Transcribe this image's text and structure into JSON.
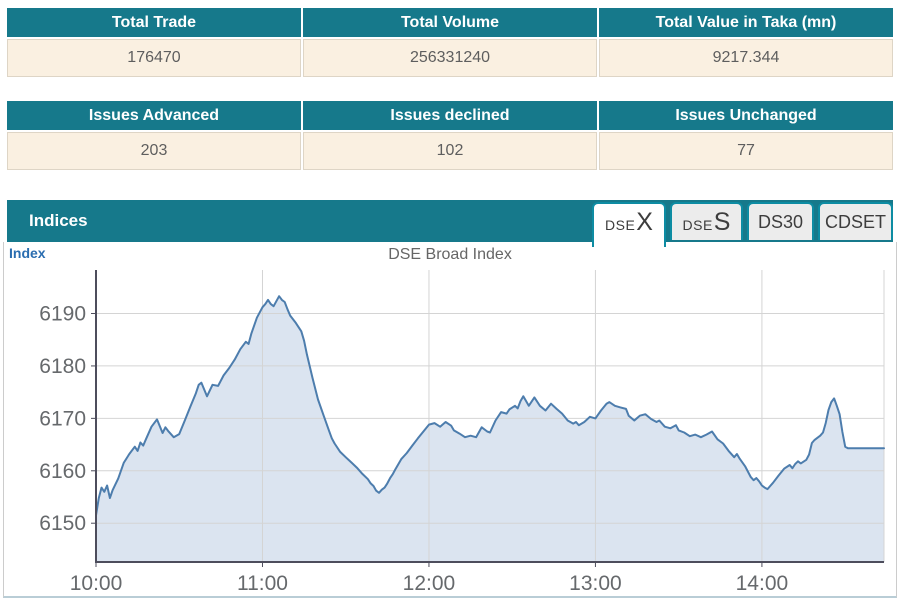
{
  "summary_table": {
    "headers": [
      "Total Trade",
      "Total Volume",
      "Total Value in Taka (mn)"
    ],
    "values": [
      "176470",
      "256331240",
      "9217.344"
    ]
  },
  "issues_table": {
    "headers": [
      "Issues Advanced",
      "Issues declined",
      "Issues Unchanged"
    ],
    "values": [
      "203",
      "102",
      "77"
    ]
  },
  "indices_panel": {
    "title": "Indices",
    "tabs": [
      {
        "small": "DSE",
        "big": "X",
        "active": true
      },
      {
        "small": "DSE",
        "big": "S",
        "active": false
      },
      {
        "text": "DS30",
        "active": false
      },
      {
        "text": "CDSET",
        "active": false
      }
    ],
    "index_label": "Index",
    "chart_title": "DSE Broad Index"
  },
  "colors": {
    "teal_header": "#16798b",
    "tab_border": "#0d8ca3",
    "tab_inactive_bg": "#ececec",
    "cream_row": "#faf0e1",
    "value_text": "#5e5e5e",
    "index_label_blue": "#2a6db0",
    "chart_title_gray": "#666666",
    "line": "#4d7dad",
    "area_fill": "#dbe4f0",
    "grid": "#d4d4d4",
    "axis": "#4d4d5c",
    "tick_text": "#66696c"
  },
  "chart_data": {
    "type": "area",
    "title": "DSE Broad Index",
    "xlabel": "",
    "ylabel": "Index",
    "legend": "none",
    "grid": true,
    "x_axis": {
      "unit": "time of day",
      "ticks": [
        "10:00",
        "11:00",
        "12:00",
        "13:00",
        "14:00"
      ],
      "tick_minutes": [
        0,
        60,
        120,
        180,
        240
      ],
      "total_minutes": 284
    },
    "y_axis": {
      "ticks": [
        6150,
        6160,
        6170,
        6180,
        6190
      ],
      "render_min": 6142.6,
      "render_max": 6198.3
    },
    "series": [
      {
        "name": "DSEX (DSE Broad Index)",
        "points_format": "[minutes_after_10:00, index_value]",
        "points": [
          [
            0,
            6151.5
          ],
          [
            1,
            6154.8
          ],
          [
            2,
            6156.8
          ],
          [
            3,
            6156.0
          ],
          [
            4,
            6157.2
          ],
          [
            5,
            6154.8
          ],
          [
            6,
            6156.3
          ],
          [
            8,
            6158.5
          ],
          [
            10,
            6161.5
          ],
          [
            12,
            6163.2
          ],
          [
            14,
            6164.6
          ],
          [
            15,
            6163.8
          ],
          [
            16,
            6165.4
          ],
          [
            17,
            6164.8
          ],
          [
            18,
            6166.0
          ],
          [
            20,
            6168.4
          ],
          [
            22,
            6169.8
          ],
          [
            24,
            6167.2
          ],
          [
            25,
            6168.3
          ],
          [
            26,
            6167.6
          ],
          [
            28,
            6166.4
          ],
          [
            30,
            6167.0
          ],
          [
            32,
            6169.6
          ],
          [
            34,
            6172.2
          ],
          [
            36,
            6174.8
          ],
          [
            37,
            6176.4
          ],
          [
            38,
            6176.8
          ],
          [
            40,
            6174.2
          ],
          [
            42,
            6176.4
          ],
          [
            44,
            6176.2
          ],
          [
            46,
            6178.2
          ],
          [
            48,
            6179.6
          ],
          [
            50,
            6181.2
          ],
          [
            52,
            6183.2
          ],
          [
            54,
            6184.6
          ],
          [
            55,
            6184.2
          ],
          [
            56,
            6186.2
          ],
          [
            58,
            6189.2
          ],
          [
            60,
            6191.2
          ],
          [
            61,
            6191.8
          ],
          [
            62,
            6192.6
          ],
          [
            63,
            6191.8
          ],
          [
            64,
            6191.4
          ],
          [
            66,
            6193.3
          ],
          [
            67,
            6192.6
          ],
          [
            68,
            6192.2
          ],
          [
            69,
            6190.8
          ],
          [
            70,
            6189.6
          ],
          [
            72,
            6188.2
          ],
          [
            74,
            6186.6
          ],
          [
            75,
            6184.8
          ],
          [
            76,
            6182.2
          ],
          [
            78,
            6177.8
          ],
          [
            80,
            6173.6
          ],
          [
            82,
            6170.6
          ],
          [
            84,
            6167.6
          ],
          [
            85,
            6166.2
          ],
          [
            86,
            6165.2
          ],
          [
            88,
            6163.6
          ],
          [
            90,
            6162.6
          ],
          [
            92,
            6161.6
          ],
          [
            94,
            6160.6
          ],
          [
            96,
            6159.4
          ],
          [
            98,
            6158.4
          ],
          [
            99,
            6157.6
          ],
          [
            100,
            6157.1
          ],
          [
            101,
            6156.2
          ],
          [
            102,
            6155.8
          ],
          [
            103,
            6156.4
          ],
          [
            104,
            6156.8
          ],
          [
            105,
            6157.6
          ],
          [
            106,
            6158.6
          ],
          [
            107,
            6159.4
          ],
          [
            108,
            6160.4
          ],
          [
            110,
            6162.2
          ],
          [
            112,
            6163.4
          ],
          [
            114,
            6164.8
          ],
          [
            116,
            6166.2
          ],
          [
            118,
            6167.5
          ],
          [
            120,
            6168.8
          ],
          [
            122,
            6169.1
          ],
          [
            124,
            6168.4
          ],
          [
            126,
            6169.3
          ],
          [
            128,
            6168.6
          ],
          [
            129,
            6167.7
          ],
          [
            131,
            6167.1
          ],
          [
            133,
            6166.4
          ],
          [
            135,
            6166.7
          ],
          [
            137,
            6166.4
          ],
          [
            139,
            6168.3
          ],
          [
            141,
            6167.5
          ],
          [
            142,
            6167.3
          ],
          [
            144,
            6169.6
          ],
          [
            146,
            6171.2
          ],
          [
            148,
            6170.9
          ],
          [
            149,
            6171.7
          ],
          [
            151,
            6172.4
          ],
          [
            152,
            6171.9
          ],
          [
            153,
            6173.3
          ],
          [
            154,
            6174.2
          ],
          [
            156,
            6172.4
          ],
          [
            158,
            6174.0
          ],
          [
            160,
            6172.4
          ],
          [
            162,
            6171.5
          ],
          [
            164,
            6172.8
          ],
          [
            166,
            6171.8
          ],
          [
            168,
            6170.9
          ],
          [
            170,
            6169.6
          ],
          [
            172,
            6169.0
          ],
          [
            173,
            6169.3
          ],
          [
            174,
            6168.7
          ],
          [
            176,
            6169.3
          ],
          [
            178,
            6170.3
          ],
          [
            180,
            6170.0
          ],
          [
            182,
            6171.5
          ],
          [
            184,
            6172.8
          ],
          [
            185,
            6173.1
          ],
          [
            187,
            6172.4
          ],
          [
            189,
            6172.1
          ],
          [
            191,
            6171.8
          ],
          [
            192,
            6170.5
          ],
          [
            194,
            6169.6
          ],
          [
            196,
            6170.5
          ],
          [
            198,
            6170.8
          ],
          [
            200,
            6169.9
          ],
          [
            202,
            6169.3
          ],
          [
            203,
            6169.6
          ],
          [
            205,
            6168.4
          ],
          [
            207,
            6168.1
          ],
          [
            209,
            6168.7
          ],
          [
            210,
            6167.7
          ],
          [
            212,
            6167.3
          ],
          [
            214,
            6166.6
          ],
          [
            216,
            6166.9
          ],
          [
            218,
            6166.4
          ],
          [
            220,
            6166.9
          ],
          [
            222,
            6167.5
          ],
          [
            224,
            6166.0
          ],
          [
            226,
            6165.2
          ],
          [
            228,
            6163.8
          ],
          [
            230,
            6162.6
          ],
          [
            231,
            6163.2
          ],
          [
            232,
            6162.3
          ],
          [
            234,
            6160.8
          ],
          [
            236,
            6158.8
          ],
          [
            237,
            6158.2
          ],
          [
            238,
            6158.6
          ],
          [
            239,
            6158.0
          ],
          [
            240,
            6157.2
          ],
          [
            241,
            6156.8
          ],
          [
            242,
            6156.5
          ],
          [
            243,
            6157.1
          ],
          [
            244,
            6157.7
          ],
          [
            246,
            6159.1
          ],
          [
            248,
            6160.4
          ],
          [
            250,
            6161.1
          ],
          [
            251,
            6160.5
          ],
          [
            252,
            6161.3
          ],
          [
            253,
            6161.8
          ],
          [
            254,
            6161.4
          ],
          [
            256,
            6162.1
          ],
          [
            257,
            6163.1
          ],
          [
            258,
            6165.3
          ],
          [
            259,
            6165.9
          ],
          [
            260,
            6166.3
          ],
          [
            261,
            6166.7
          ],
          [
            262,
            6167.3
          ],
          [
            263,
            6169.1
          ],
          [
            264,
            6171.6
          ],
          [
            265,
            6173.1
          ],
          [
            266,
            6173.8
          ],
          [
            267,
            6172.4
          ],
          [
            268,
            6170.8
          ],
          [
            269,
            6167.4
          ],
          [
            270,
            6164.6
          ],
          [
            271,
            6164.3
          ],
          [
            284,
            6164.3
          ]
        ]
      }
    ]
  }
}
